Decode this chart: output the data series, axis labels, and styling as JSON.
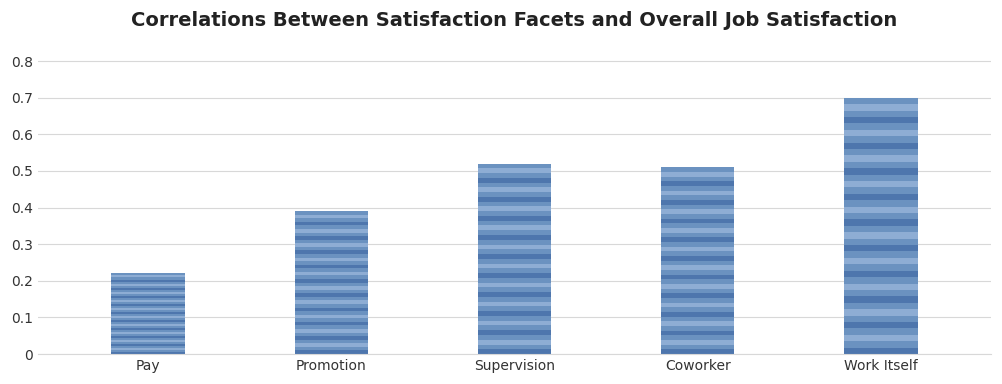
{
  "categories": [
    "Pay",
    "Promotion",
    "Supervision",
    "Coworker",
    "Work Itself"
  ],
  "values": [
    0.22,
    0.39,
    0.52,
    0.51,
    0.7
  ],
  "bar_color_light": "#8eadd4",
  "bar_color_mid": "#6b92c0",
  "bar_color_dark": "#4e76ad",
  "title": "Correlations Between Satisfaction Facets and Overall Job Satisfaction",
  "ylim": [
    0,
    0.85
  ],
  "yticks": [
    0,
    0.1,
    0.2,
    0.3,
    0.4,
    0.5,
    0.6,
    0.7,
    0.8
  ],
  "title_fontsize": 14,
  "tick_fontsize": 10,
  "background_color": "#ffffff",
  "grid_color": "#d8d8d8",
  "bar_width": 0.4,
  "n_stripes": 40
}
